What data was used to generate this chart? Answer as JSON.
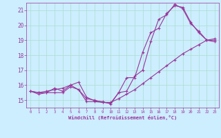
{
  "background_color": "#cceeff",
  "grid_color": "#aaddcc",
  "line_color": "#993399",
  "marker": "+",
  "markersize": 3,
  "linewidth": 0.8,
  "xlim": [
    -0.5,
    23.5
  ],
  "ylim": [
    14.5,
    21.5
  ],
  "xticks": [
    0,
    1,
    2,
    3,
    4,
    5,
    6,
    7,
    8,
    9,
    10,
    11,
    12,
    13,
    14,
    15,
    16,
    17,
    18,
    19,
    20,
    21,
    22,
    23
  ],
  "yticks": [
    15,
    16,
    17,
    18,
    19,
    20,
    21
  ],
  "xlabel": "Windchill (Refroidissement éolien,°C)",
  "title": "",
  "line1": {
    "x": [
      0,
      1,
      2,
      3,
      4,
      5,
      6,
      7,
      8,
      9,
      10,
      11,
      12,
      13,
      14,
      15,
      16,
      17,
      18,
      19,
      20,
      21,
      22,
      23
    ],
    "y": [
      15.6,
      15.5,
      15.5,
      15.5,
      15.5,
      15.9,
      15.7,
      14.9,
      14.9,
      14.85,
      14.8,
      15.5,
      16.5,
      16.5,
      18.2,
      19.5,
      19.8,
      20.8,
      21.3,
      21.2,
      20.2,
      19.5,
      19.0,
      18.9
    ]
  },
  "line2": {
    "x": [
      0,
      1,
      2,
      3,
      4,
      5,
      6,
      7,
      8,
      9,
      10,
      11,
      12,
      13,
      14,
      15,
      16,
      17,
      18,
      19,
      20,
      21,
      22,
      23
    ],
    "y": [
      15.6,
      15.4,
      15.5,
      15.8,
      15.6,
      16.0,
      16.2,
      15.2,
      14.95,
      14.9,
      14.75,
      15.5,
      15.6,
      16.6,
      17.0,
      18.9,
      20.4,
      20.7,
      21.4,
      21.1,
      20.1,
      19.6,
      19.0,
      19.0
    ]
  },
  "line3": {
    "x": [
      0,
      1,
      2,
      3,
      4,
      5,
      6,
      7,
      8,
      9,
      10,
      11,
      12,
      13,
      14,
      15,
      16,
      17,
      18,
      19,
      20,
      21,
      22,
      23
    ],
    "y": [
      15.6,
      15.5,
      15.6,
      15.7,
      15.8,
      16.0,
      15.7,
      15.1,
      15.0,
      14.85,
      14.85,
      15.1,
      15.4,
      15.7,
      16.1,
      16.5,
      16.9,
      17.3,
      17.7,
      18.1,
      18.4,
      18.7,
      19.0,
      19.1
    ]
  }
}
